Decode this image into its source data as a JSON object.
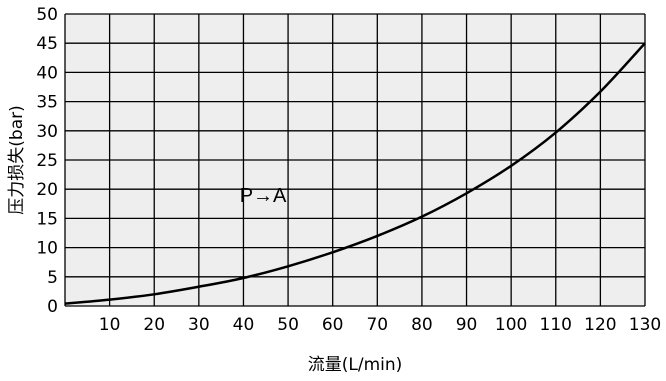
{
  "chart_data": {
    "type": "line",
    "title": "",
    "xlabel": "流量(L/min)",
    "ylabel": "压力损失(bar)",
    "xlim": [
      0,
      130
    ],
    "ylim": [
      0,
      50
    ],
    "x_ticks": [
      10,
      20,
      30,
      40,
      50,
      60,
      70,
      80,
      90,
      100,
      110,
      120,
      130
    ],
    "y_ticks": [
      0,
      5,
      10,
      15,
      20,
      25,
      30,
      35,
      40,
      45,
      50
    ],
    "grid": true,
    "series": [
      {
        "x": [
          0,
          10,
          20,
          30,
          40,
          50,
          60,
          70,
          80,
          90,
          100,
          110,
          120,
          130
        ],
        "y": [
          0.4,
          1.1,
          2.0,
          3.3,
          4.8,
          6.8,
          9.2,
          12.0,
          15.3,
          19.3,
          24.0,
          29.7,
          36.7,
          45.0
        ]
      }
    ],
    "annotations": [
      {
        "text": "P→A",
        "x": 47,
        "y": 19
      }
    ],
    "colors": {
      "line": "#000000",
      "grid": "#000000",
      "background": "#eeeeee"
    }
  }
}
